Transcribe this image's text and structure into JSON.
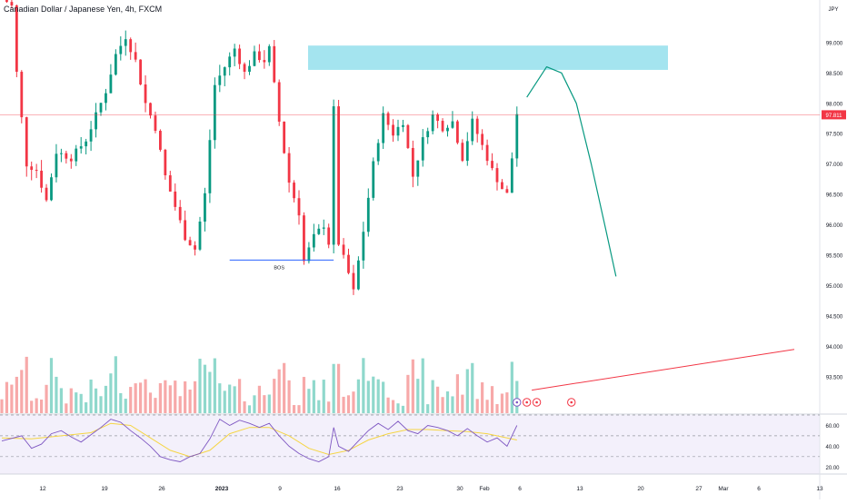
{
  "chart_data": {
    "type": "candlestick",
    "title": "Canadian Dollar / Japanese Yen, 4h, FXCM",
    "currency": "JPY",
    "last_price": "97.811",
    "price_axis": {
      "range": [
        92.9,
        99.7
      ],
      "ticks": [
        "99.000",
        "98.500",
        "98.000",
        "97.500",
        "97.000",
        "96.500",
        "96.000",
        "95.500",
        "95.000",
        "94.500",
        "94.000",
        "93.500"
      ]
    },
    "time_axis": {
      "ticks": [
        "12",
        "19",
        "26",
        "2023",
        "9",
        "16",
        "23",
        "30",
        "Feb",
        "6",
        "13",
        "20",
        "27",
        "Mar",
        "6",
        "13"
      ]
    },
    "price_path": [
      [
        0,
        99.75
      ],
      [
        2,
        99.6
      ],
      [
        3,
        98.5
      ],
      [
        5,
        97.0
      ],
      [
        7,
        96.9
      ],
      [
        9,
        96.4
      ],
      [
        11,
        97.2
      ],
      [
        14,
        97.1
      ],
      [
        17,
        97.4
      ],
      [
        19,
        97.8
      ],
      [
        21,
        98.2
      ],
      [
        23,
        98.8
      ],
      [
        25,
        99.1
      ],
      [
        27,
        98.7
      ],
      [
        29,
        98.0
      ],
      [
        31,
        97.6
      ],
      [
        33,
        96.8
      ],
      [
        35,
        96.3
      ],
      [
        37,
        95.8
      ],
      [
        39,
        95.6
      ],
      [
        41,
        96.5
      ],
      [
        43,
        98.3
      ],
      [
        45,
        98.6
      ],
      [
        47,
        98.9
      ],
      [
        49,
        98.5
      ],
      [
        51,
        98.8
      ],
      [
        53,
        98.7
      ],
      [
        54,
        98.9
      ],
      [
        55,
        98.3
      ],
      [
        56,
        97.7
      ],
      [
        58,
        96.7
      ],
      [
        60,
        96.2
      ],
      [
        61,
        95.4
      ],
      [
        63,
        95.8
      ],
      [
        65,
        96.0
      ],
      [
        66,
        95.7
      ],
      [
        67,
        97.9
      ],
      [
        68,
        95.7
      ],
      [
        70,
        95.2
      ],
      [
        71,
        94.9
      ],
      [
        73,
        95.9
      ],
      [
        75,
        97.0
      ],
      [
        77,
        97.8
      ],
      [
        79,
        97.5
      ],
      [
        81,
        97.7
      ],
      [
        83,
        96.8
      ],
      [
        85,
        97.4
      ],
      [
        87,
        97.8
      ],
      [
        89,
        97.6
      ],
      [
        91,
        97.7
      ],
      [
        93,
        97.1
      ],
      [
        95,
        97.7
      ],
      [
        97,
        97.3
      ],
      [
        99,
        96.9
      ],
      [
        101,
        96.6
      ],
      [
        102,
        96.5
      ],
      [
        103,
        97.1
      ],
      [
        104,
        97.83
      ]
    ],
    "annotations": {
      "bos_label": "BOS",
      "bos_level": 95.42,
      "supply_zone": {
        "from": 98.55,
        "to": 98.95
      },
      "forecast_path": [
        [
          106,
          98.1
        ],
        [
          110,
          98.6
        ],
        [
          113,
          98.5
        ],
        [
          116,
          98.0
        ],
        [
          119,
          97.0
        ],
        [
          122,
          95.9
        ],
        [
          124,
          95.15
        ]
      ],
      "trendline": {
        "from": [
          107,
          93.28
        ],
        "to": [
          160,
          93.95
        ]
      }
    },
    "events": [
      {
        "icon": "lightning-icon",
        "index": 104
      },
      {
        "icon": "flag-icon",
        "index": 106
      },
      {
        "icon": "flag-icon",
        "index": 108
      },
      {
        "icon": "flag-icon",
        "index": 115
      }
    ],
    "rsi": {
      "range": [
        15,
        70
      ],
      "levels": [
        70,
        50,
        30
      ],
      "ticks": [
        "60.00",
        "40.00",
        "20.00"
      ],
      "path": [
        [
          0,
          45
        ],
        [
          4,
          50
        ],
        [
          6,
          38
        ],
        [
          8,
          42
        ],
        [
          10,
          52
        ],
        [
          12,
          55
        ],
        [
          14,
          49
        ],
        [
          16,
          44
        ],
        [
          18,
          51
        ],
        [
          20,
          58
        ],
        [
          22,
          66
        ],
        [
          24,
          63
        ],
        [
          26,
          55
        ],
        [
          28,
          48
        ],
        [
          30,
          40
        ],
        [
          32,
          30
        ],
        [
          34,
          27
        ],
        [
          36,
          25
        ],
        [
          38,
          30
        ],
        [
          40,
          33
        ],
        [
          42,
          47
        ],
        [
          44,
          66
        ],
        [
          46,
          60
        ],
        [
          48,
          65
        ],
        [
          50,
          62
        ],
        [
          52,
          58
        ],
        [
          54,
          62
        ],
        [
          56,
          50
        ],
        [
          58,
          40
        ],
        [
          60,
          33
        ],
        [
          62,
          28
        ],
        [
          64,
          25
        ],
        [
          66,
          30
        ],
        [
          67,
          58
        ],
        [
          68,
          40
        ],
        [
          70,
          35
        ],
        [
          72,
          45
        ],
        [
          74,
          55
        ],
        [
          76,
          62
        ],
        [
          78,
          56
        ],
        [
          80,
          64
        ],
        [
          82,
          55
        ],
        [
          84,
          52
        ],
        [
          86,
          60
        ],
        [
          88,
          58
        ],
        [
          90,
          55
        ],
        [
          92,
          50
        ],
        [
          94,
          57
        ],
        [
          96,
          50
        ],
        [
          98,
          44
        ],
        [
          100,
          48
        ],
        [
          102,
          40
        ],
        [
          104,
          60
        ]
      ],
      "ma_path": [
        [
          0,
          48
        ],
        [
          6,
          47
        ],
        [
          12,
          50
        ],
        [
          18,
          53
        ],
        [
          22,
          62
        ],
        [
          26,
          60
        ],
        [
          30,
          48
        ],
        [
          34,
          36
        ],
        [
          38,
          30
        ],
        [
          42,
          36
        ],
        [
          46,
          52
        ],
        [
          50,
          58
        ],
        [
          54,
          58
        ],
        [
          58,
          50
        ],
        [
          62,
          38
        ],
        [
          66,
          32
        ],
        [
          70,
          36
        ],
        [
          74,
          46
        ],
        [
          78,
          52
        ],
        [
          82,
          56
        ],
        [
          86,
          56
        ],
        [
          90,
          55
        ],
        [
          94,
          54
        ],
        [
          98,
          52
        ],
        [
          102,
          48
        ],
        [
          104,
          46
        ]
      ]
    }
  }
}
